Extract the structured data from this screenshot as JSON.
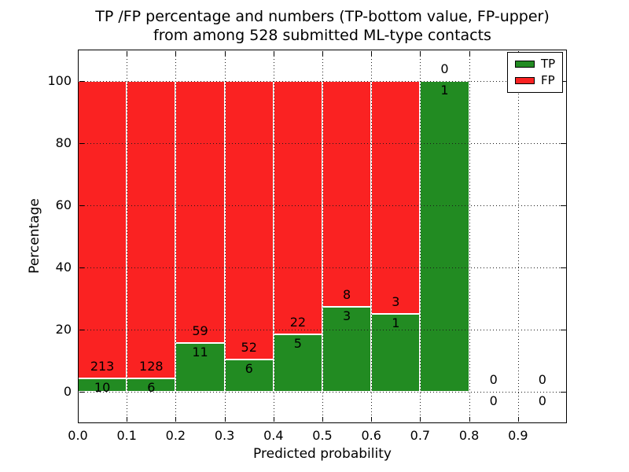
{
  "title": {
    "line1": "TP /FP percentage and numbers (TP-bottom value, FP-upper)",
    "line2": "from among 528 submitted ML-type contacts"
  },
  "axes": {
    "xlabel": "Predicted probability",
    "ylabel": "Percentage"
  },
  "legend": {
    "items": [
      {
        "label": "TP",
        "series": "tp"
      },
      {
        "label": "FP",
        "series": "fp"
      }
    ]
  },
  "chart_data": {
    "type": "bar",
    "stacked": true,
    "note": "green TP segment height = tp/(tp+fp)*100, red FP fills to 100%",
    "title": "TP /FP percentage and numbers (TP-bottom value, FP-upper) from among 528 submitted ML-type contacts",
    "xlabel": "Predicted probability",
    "ylabel": "Percentage",
    "total_contacts": 528,
    "x_range": [
      0.0,
      1.0
    ],
    "y_range": [
      -10,
      110
    ],
    "x_tick_values": [
      0.0,
      0.1,
      0.2,
      0.3,
      0.4,
      0.5,
      0.6,
      0.7,
      0.8,
      0.9
    ],
    "x_tick_labels": [
      "0.0",
      "0.1",
      "0.2",
      "0.3",
      "0.4",
      "0.5",
      "0.6",
      "0.7",
      "0.8",
      "0.9"
    ],
    "y_tick_values": [
      0,
      20,
      40,
      60,
      80,
      100
    ],
    "y_tick_labels": [
      "0",
      "20",
      "40",
      "60",
      "80",
      "100"
    ],
    "x_gridlines": [
      0.1,
      0.2,
      0.3,
      0.4,
      0.5,
      0.6,
      0.7,
      0.8,
      0.9
    ],
    "y_gridlines": [
      0,
      20,
      40,
      60,
      80,
      100
    ],
    "series_colors": {
      "tp": "#228b22",
      "fp": "#fa2222"
    },
    "grid": "dotted-black-over-bars",
    "legend_position": "upper-right",
    "bins": [
      {
        "x0": 0.0,
        "x1": 0.1,
        "tp": 10,
        "fp": 213
      },
      {
        "x0": 0.1,
        "x1": 0.2,
        "tp": 6,
        "fp": 128
      },
      {
        "x0": 0.2,
        "x1": 0.3,
        "tp": 11,
        "fp": 59
      },
      {
        "x0": 0.3,
        "x1": 0.4,
        "tp": 6,
        "fp": 52
      },
      {
        "x0": 0.4,
        "x1": 0.5,
        "tp": 5,
        "fp": 22
      },
      {
        "x0": 0.5,
        "x1": 0.6,
        "tp": 3,
        "fp": 8
      },
      {
        "x0": 0.6,
        "x1": 0.7,
        "tp": 1,
        "fp": 3
      },
      {
        "x0": 0.7,
        "x1": 0.8,
        "tp": 1,
        "fp": 0
      },
      {
        "x0": 0.8,
        "x1": 0.9,
        "tp": 0,
        "fp": 0
      },
      {
        "x0": 0.9,
        "x1": 1.0,
        "tp": 0,
        "fp": 0
      }
    ]
  }
}
